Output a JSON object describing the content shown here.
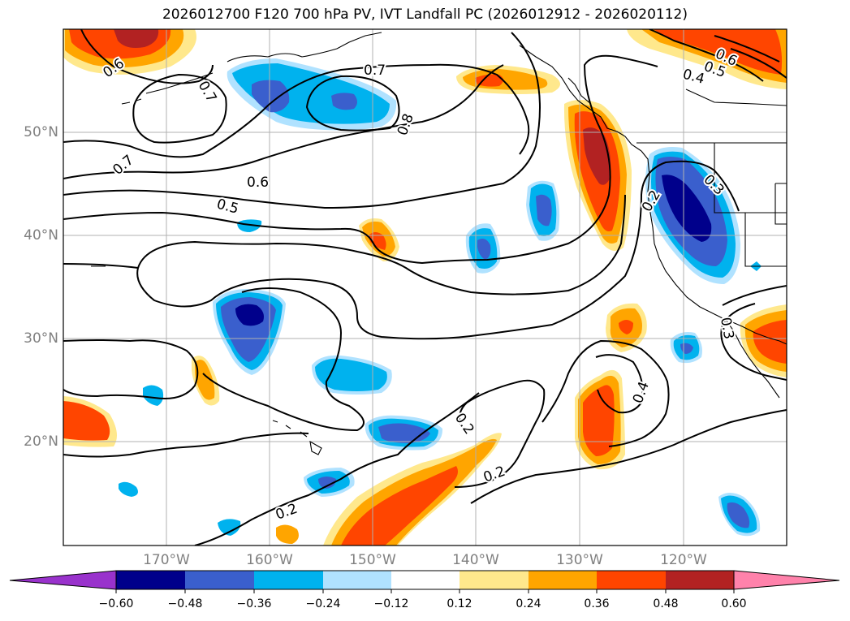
{
  "title": "2026012700 F120 700 hPa PV, IVT Landfall PC (2026012912 - 2026020112)",
  "lat_labels": [
    "20°N",
    "30°N",
    "40°N",
    "50°N"
  ],
  "lon_labels": [
    "170°W",
    "160°W",
    "150°W",
    "140°W",
    "130°W",
    "120°W"
  ],
  "contour_labels": [
    "0.6",
    "0.7",
    "0.7",
    "0.8",
    "0.7",
    "0.6",
    "0.5",
    "0.6",
    "0.5",
    "0.4",
    "0.3",
    "0.2",
    "0.2",
    "0.2",
    "0.4",
    "0.3",
    "0.2"
  ],
  "colorbar": {
    "ticks": [
      "−0.60",
      "−0.48",
      "−0.36",
      "−0.24",
      "−0.12",
      "0.12",
      "0.24",
      "0.36",
      "0.48",
      "0.60"
    ],
    "colors": [
      "#9932CC",
      "#00008B",
      "#3A5FCD",
      "#00B2EE",
      "#B0E2FF",
      "#FFFFFF",
      "#FFE88C",
      "#FFA500",
      "#FF4500",
      "#B22222",
      "#FF82AB"
    ]
  },
  "colors": {
    "positive": [
      "#FFE88C",
      "#FFA500",
      "#FF4500",
      "#B22222"
    ],
    "negative": [
      "#B0E2FF",
      "#00B2EE",
      "#3A5FCD",
      "#00008B"
    ],
    "gridline": "#b0b0b0",
    "contour": "#000000",
    "axis_label": "#808080"
  }
}
